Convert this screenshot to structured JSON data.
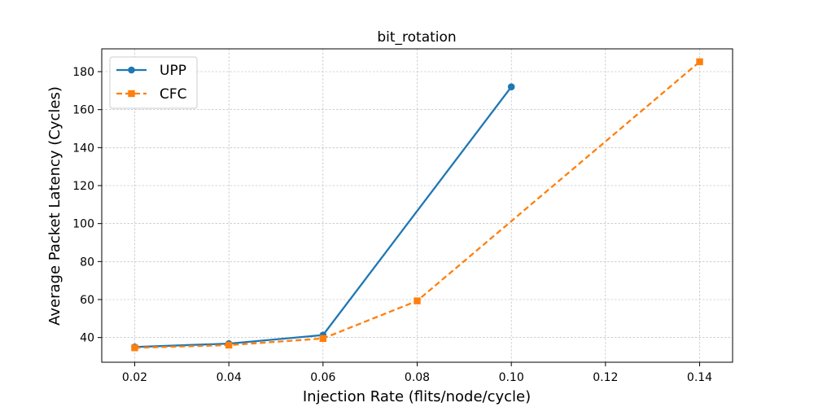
{
  "chart_data": {
    "type": "line",
    "title": "bit_rotation",
    "xlabel": "Injection Rate (flits/node/cycle)",
    "ylabel": "Average Packet Latency (Cycles)",
    "xlim": [
      0.013,
      0.147
    ],
    "ylim": [
      27,
      192
    ],
    "xticks": [
      0.02,
      0.04,
      0.06,
      0.08,
      0.1,
      0.12,
      0.14
    ],
    "xtick_labels": [
      "0.02",
      "0.04",
      "0.06",
      "0.08",
      "0.10",
      "0.12",
      "0.14"
    ],
    "yticks": [
      40,
      60,
      80,
      100,
      120,
      140,
      160,
      180
    ],
    "ytick_labels": [
      "40",
      "60",
      "80",
      "100",
      "120",
      "140",
      "160",
      "180"
    ],
    "grid": true,
    "legend_position": "top-left",
    "series": [
      {
        "name": "UPP",
        "color": "#1f77b4",
        "line_style": "solid",
        "marker": "circle",
        "x": [
          0.02,
          0.04,
          0.06,
          0.1
        ],
        "y": [
          35.0,
          36.8,
          41.3,
          172.0
        ]
      },
      {
        "name": "CFC",
        "color": "#ff7f0e",
        "line_style": "dashed",
        "marker": "square",
        "x": [
          0.02,
          0.04,
          0.06,
          0.08,
          0.14
        ],
        "y": [
          34.6,
          36.0,
          39.5,
          59.3,
          185.2
        ]
      }
    ]
  }
}
